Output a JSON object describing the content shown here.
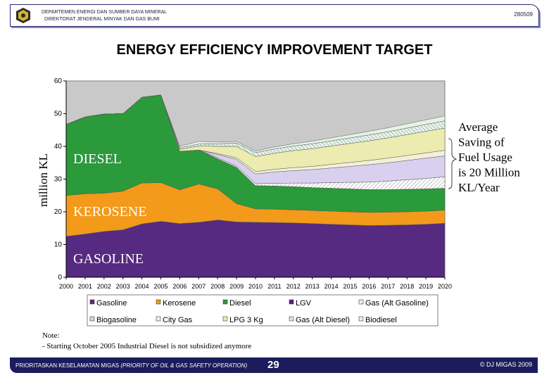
{
  "header": {
    "org_line1": "DEPARTEMEN ENERGI DAN SUMBER DAYA MINERAL",
    "org_line2": "DIREKTORAT JENDERAL MINYAK DAN GAS BUMI",
    "doc_code": "280509"
  },
  "page_title": "ENERGY EFFICIENCY IMPROVEMENT TARGET",
  "chart_data": {
    "type": "area",
    "stacked": true,
    "x": [
      "2000",
      "2001",
      "2002",
      "2003",
      "2004",
      "2005",
      "2006",
      "2007",
      "2008",
      "2009",
      "2010",
      "2011",
      "2012",
      "2013",
      "2014",
      "2015",
      "2016",
      "2017",
      "2018",
      "2019",
      "2020"
    ],
    "ylabel": "million KL",
    "ylim": [
      0,
      60
    ],
    "yticks": [
      0,
      10,
      20,
      30,
      40,
      50,
      60
    ],
    "series": [
      {
        "name": "Gasoline",
        "color": "#552a80",
        "values": [
          12.5,
          13.2,
          14,
          14.5,
          16.3,
          17.1,
          16.4,
          16.8,
          17.5,
          16.9,
          16.8,
          16.7,
          16.6,
          16.4,
          16.2,
          16,
          15.8,
          15.9,
          16,
          16.2,
          16.5
        ]
      },
      {
        "name": "Kerosene",
        "color": "#f39a1a",
        "values": [
          12.5,
          12.3,
          11.7,
          11.8,
          12.5,
          11.8,
          10.3,
          11.7,
          9.5,
          5.6,
          4.1,
          4.1,
          4,
          4,
          4,
          4,
          4,
          4,
          4,
          4,
          4
        ]
      },
      {
        "name": "Diesel",
        "color": "#2a9a3a",
        "values": [
          21.7,
          23.5,
          24.2,
          23.7,
          26.2,
          26.8,
          11.8,
          10.4,
          9.2,
          11.1,
          7.1,
          7.1,
          7.1,
          7,
          7,
          7,
          7,
          6.9,
          6.9,
          6.8,
          6.7
        ]
      },
      {
        "name": "LGV",
        "color": "#5a1a8a",
        "values": [
          0,
          0,
          0,
          0,
          0,
          0,
          0,
          0,
          0,
          0,
          0,
          0,
          0,
          0,
          0,
          0,
          0,
          0,
          0,
          0,
          0
        ]
      },
      {
        "name": "Gas (Alt Gasoline)",
        "color": "#f0f0ff",
        "values": [
          0,
          0,
          0,
          0,
          0,
          0,
          0,
          0,
          0.3,
          0.4,
          0.6,
          0.8,
          1.1,
          1.4,
          1.7,
          2,
          2.3,
          2.6,
          2.9,
          3.2,
          3.5
        ]
      },
      {
        "name": "Biogasoline",
        "color": "#d8d0ee",
        "values": [
          0,
          0,
          0,
          0,
          0,
          0,
          0,
          0,
          1,
          2,
          3,
          3.5,
          3.8,
          4.1,
          4.5,
          4.9,
          5.3,
          5.6,
          5.9,
          6.2,
          6.4
        ]
      },
      {
        "name": "City Gas",
        "color": "#f4f0d8",
        "values": [
          0,
          0,
          0,
          0,
          0,
          0,
          0,
          0,
          0.3,
          0.5,
          0.7,
          0.8,
          0.9,
          1,
          1.1,
          1.2,
          1.3,
          1.4,
          1.5,
          1.6,
          1.7
        ]
      },
      {
        "name": "LPG 3 Kg",
        "color": "#ecebb0",
        "values": [
          0,
          0,
          0,
          0,
          0,
          0,
          0.6,
          1.2,
          2.2,
          3.5,
          4.6,
          4.9,
          5.2,
          5.4,
          5.6,
          5.8,
          6,
          6.2,
          6.4,
          6.6,
          6.8
        ]
      },
      {
        "name": "Gas (Alt Diesel)",
        "color": "#9ac0a8",
        "values": [
          0,
          0,
          0,
          0,
          0,
          0,
          0.4,
          0.6,
          0.8,
          1,
          1.2,
          1.3,
          1.4,
          1.5,
          1.6,
          1.7,
          1.8,
          1.9,
          2,
          2.1,
          2.2
        ]
      },
      {
        "name": "Biodiesel",
        "color": "#e6f2e6",
        "values": [
          0,
          0,
          0,
          0,
          0,
          0,
          0.5,
          0.8,
          0.5,
          0.5,
          0.5,
          0.6,
          0.7,
          0.8,
          0.9,
          1,
          1.1,
          1.2,
          1.3,
          1.4,
          1.5
        ]
      }
    ],
    "annotations": [
      "DIESEL",
      "KEROSENE",
      "GASOLINE"
    ],
    "callout": [
      "Average",
      "Saving of",
      "Fuel Usage",
      "is 20 Million",
      "KL/Year"
    ]
  },
  "notes": {
    "line1": "Note:",
    "line2": "- Starting October 2005 Industrial Diesel is not subsidized anymore"
  },
  "footer": {
    "left_prefix": "PRIORITASKAN KESELAMATAN MIGAS",
    "left_italic": "(PRIORITY OF OIL & GAS SAFETY OPERATION)",
    "page": "29",
    "right": "© DJ MIGAS 2009"
  }
}
